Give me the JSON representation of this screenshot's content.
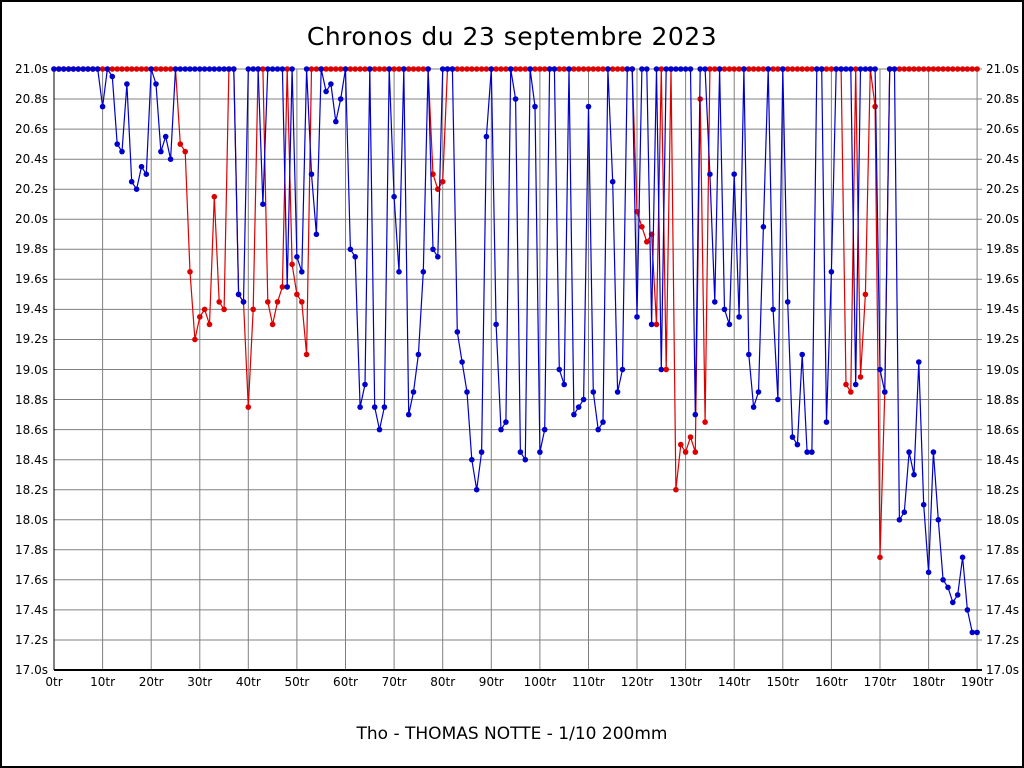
{
  "title": "Chronos du 23 septembre 2023",
  "footer": "Tho - THOMAS NOTTE - 1/10 200mm",
  "chart_data": {
    "type": "line",
    "title": "Chronos du 23 septembre 2023",
    "subtitle": "Tho - THOMAS NOTTE - 1/10 200mm",
    "x_unit": "tr",
    "y_unit": "s",
    "xlim": [
      0,
      191
    ],
    "ylim": [
      17.0,
      21.0
    ],
    "x_tick_step": 10,
    "y_tick_step": 0.2,
    "clip_max": 21.0,
    "grid": true,
    "colors": {
      "grid": "#808080",
      "axis": "#000000",
      "blue": "#0000cc",
      "red": "#dd0000"
    },
    "x_ticks": [
      "0tr",
      "10tr",
      "20tr",
      "30tr",
      "40tr",
      "50tr",
      "60tr",
      "70tr",
      "80tr",
      "90tr",
      "100tr",
      "110tr",
      "120tr",
      "130tr",
      "140tr",
      "150tr",
      "160tr",
      "170tr",
      "180tr",
      "190tr"
    ],
    "y_ticks": [
      "21.0s",
      "20.8s",
      "20.6s",
      "20.4s",
      "20.2s",
      "20.0s",
      "19.8s",
      "19.6s",
      "19.4s",
      "19.2s",
      "19.0s",
      "18.8s",
      "18.6s",
      "18.4s",
      "18.2s",
      "18.0s",
      "17.8s",
      "17.6s",
      "17.4s",
      "17.2s",
      "17.0s"
    ],
    "series": [
      {
        "name": "red",
        "color": "#dd0000",
        "values": [
          21,
          21,
          21,
          21,
          21,
          21,
          21,
          21,
          21,
          21,
          21,
          21,
          21,
          21,
          21,
          21,
          21,
          21,
          21,
          21,
          21,
          21,
          21,
          21,
          21,
          21,
          20.5,
          20.45,
          19.65,
          19.2,
          19.35,
          19.4,
          19.3,
          20.15,
          19.45,
          19.4,
          21,
          21,
          19.5,
          19.45,
          18.75,
          19.4,
          21,
          21,
          19.45,
          19.3,
          19.45,
          19.55,
          21,
          19.7,
          19.5,
          19.45,
          19.1,
          21,
          21,
          21,
          21,
          21,
          21,
          21,
          21,
          21,
          21,
          21,
          21,
          21,
          21,
          21,
          21,
          21,
          21,
          21,
          21,
          21,
          21,
          21,
          21,
          21,
          20.3,
          20.2,
          20.25,
          21,
          21,
          21,
          21,
          21,
          21,
          21,
          21,
          21,
          21,
          21,
          21,
          21,
          21,
          21,
          21,
          21,
          21,
          21,
          21,
          21,
          21,
          21,
          21,
          21,
          21,
          21,
          21,
          21,
          21,
          21,
          21,
          21,
          21,
          21,
          21,
          21,
          21,
          21,
          20.05,
          19.95,
          19.85,
          19.9,
          19.3,
          21,
          19.0,
          21,
          18.2,
          18.5,
          18.45,
          18.55,
          18.45,
          20.8,
          18.65,
          21,
          21,
          21,
          21,
          21,
          21,
          21,
          21,
          21,
          21,
          21,
          21,
          21,
          21,
          21,
          21,
          21,
          21,
          21,
          21,
          21,
          21,
          21,
          21,
          21,
          21,
          21,
          21,
          18.9,
          18.85,
          21,
          18.95,
          19.5,
          21,
          20.75,
          17.75,
          18.85,
          21,
          21,
          21,
          21,
          21,
          21,
          21,
          21,
          21,
          21,
          21,
          21,
          21,
          21,
          21,
          21,
          21,
          21,
          21
        ]
      },
      {
        "name": "blue",
        "color": "#0000cc",
        "values": [
          21,
          21,
          21,
          21,
          21,
          21,
          21,
          21,
          21,
          21,
          20.75,
          21,
          20.95,
          20.5,
          20.45,
          20.9,
          20.25,
          20.2,
          20.35,
          20.3,
          21,
          20.9,
          20.45,
          20.55,
          20.4,
          21,
          21,
          21,
          21,
          21,
          21,
          21,
          21,
          21,
          21,
          21,
          21,
          21,
          19.5,
          19.45,
          21,
          21,
          21,
          20.1,
          21,
          21,
          21,
          21,
          19.55,
          21,
          19.75,
          19.65,
          21,
          20.3,
          19.9,
          21,
          20.85,
          20.9,
          20.65,
          20.8,
          21,
          19.8,
          19.75,
          18.75,
          18.9,
          21,
          18.75,
          18.6,
          18.75,
          21,
          20.15,
          19.65,
          21,
          18.7,
          18.85,
          19.1,
          19.65,
          21,
          19.8,
          19.75,
          21,
          21,
          21,
          19.25,
          19.05,
          18.85,
          18.4,
          18.2,
          18.45,
          20.55,
          21,
          19.3,
          18.6,
          18.65,
          21,
          20.8,
          18.45,
          18.4,
          21,
          20.75,
          18.45,
          18.6,
          21,
          21,
          19.0,
          18.9,
          21,
          18.7,
          18.75,
          18.8,
          20.75,
          18.85,
          18.6,
          18.65,
          21,
          20.25,
          18.85,
          19.0,
          21,
          21,
          19.35,
          21,
          21,
          19.3,
          21,
          19.0,
          21,
          21,
          21,
          21,
          21,
          21,
          18.7,
          21,
          21,
          20.3,
          19.45,
          21,
          19.4,
          19.3,
          20.3,
          19.35,
          21,
          19.1,
          18.75,
          18.85,
          19.95,
          21,
          19.4,
          18.8,
          21,
          19.45,
          18.55,
          18.5,
          19.1,
          18.45,
          18.45,
          21,
          21,
          18.65,
          19.65,
          21,
          21,
          21,
          21,
          18.9,
          21,
          21,
          21,
          21,
          19.0,
          18.85,
          21,
          21,
          18.0,
          18.05,
          18.45,
          18.3,
          19.05,
          18.1,
          17.65,
          18.45,
          18.0,
          17.6,
          17.55,
          17.45,
          17.5,
          17.75,
          17.4,
          17.25,
          17.25
        ]
      }
    ]
  }
}
